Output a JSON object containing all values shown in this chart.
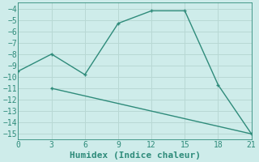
{
  "xlabel": "Humidex (Indice chaleur)",
  "line1_x": [
    0,
    3,
    6,
    9,
    12,
    15,
    18,
    21
  ],
  "line1_y": [
    -9.5,
    -8.0,
    -9.8,
    -5.3,
    -4.2,
    -4.2,
    -10.7,
    -15.0
  ],
  "line2_x": [
    3,
    21
  ],
  "line2_y": [
    -11.0,
    -15.0
  ],
  "color": "#2e8b7a",
  "bg_color": "#ceecea",
  "grid_color": "#b8d8d4",
  "xlim": [
    0,
    21
  ],
  "ylim": [
    -15.5,
    -3.5
  ],
  "xticks": [
    0,
    3,
    6,
    9,
    12,
    15,
    18,
    21
  ],
  "yticks": [
    -4,
    -5,
    -6,
    -7,
    -8,
    -9,
    -10,
    -11,
    -12,
    -13,
    -14,
    -15
  ],
  "tick_fontsize": 7,
  "xlabel_fontsize": 8,
  "markersize": 3.5,
  "linewidth": 1.0
}
